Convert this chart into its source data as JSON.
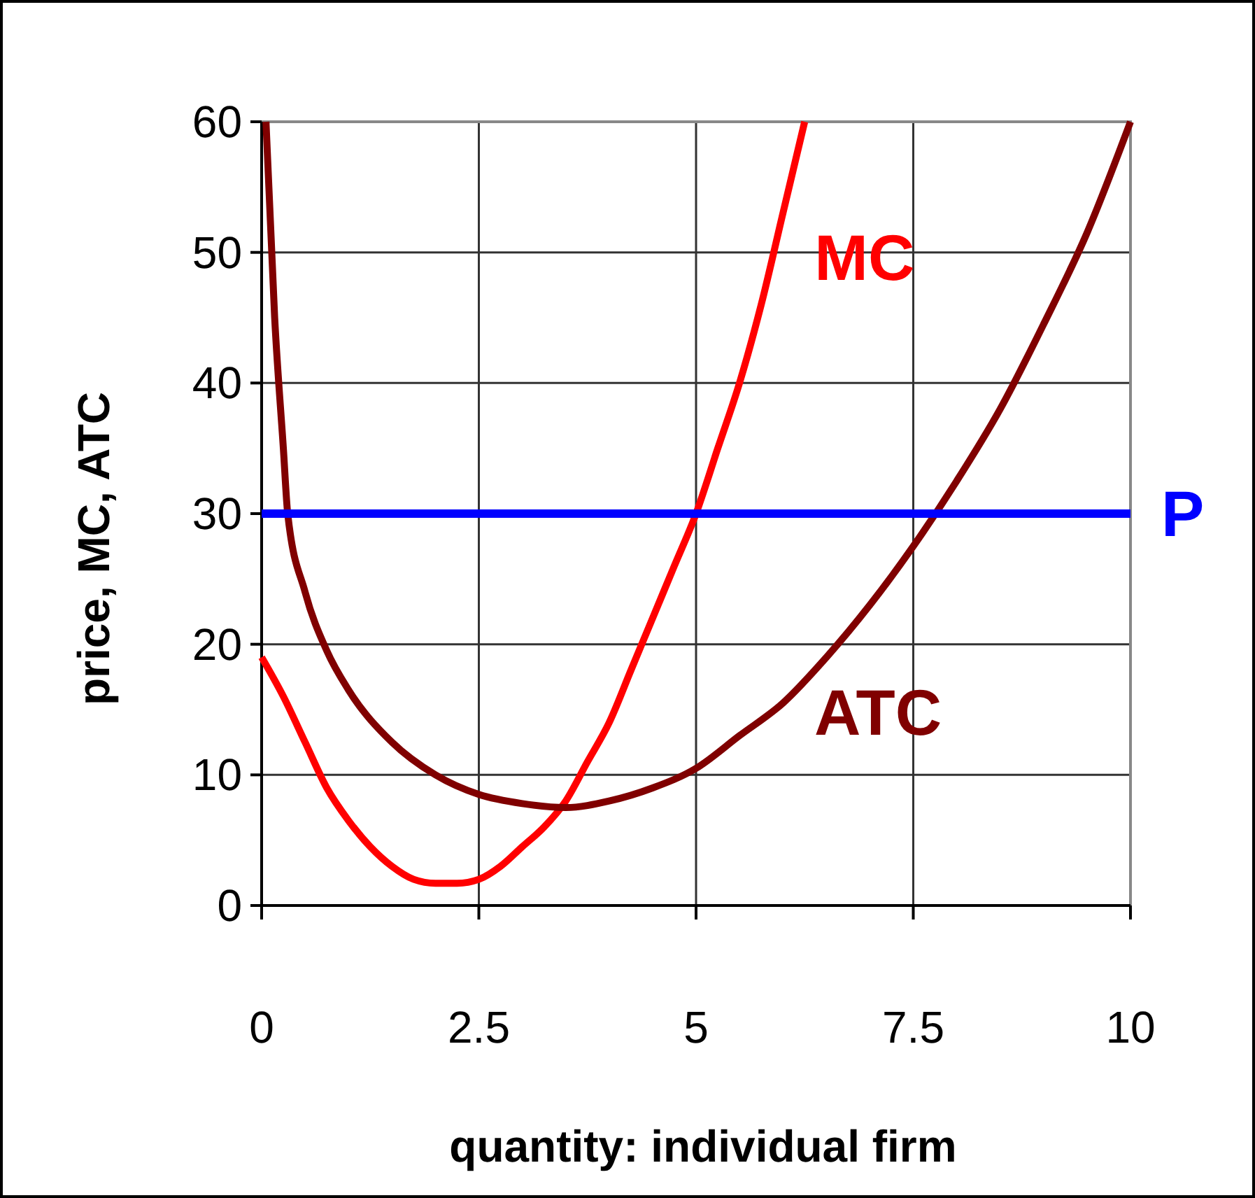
{
  "chart_data": {
    "type": "line",
    "xlabel": "quantity: individual firm",
    "ylabel": "price, MC, ATC",
    "xlim": [
      0,
      10
    ],
    "ylim": [
      0,
      60
    ],
    "xticks": [
      0,
      2.5,
      5,
      7.5,
      10
    ],
    "yticks": [
      0,
      10,
      20,
      30,
      40,
      50,
      60
    ],
    "grid": true,
    "series": [
      {
        "name": "MC",
        "color": "#ff0000",
        "x": [
          0,
          0.25,
          0.5,
          0.75,
          1,
          1.25,
          1.5,
          1.75,
          2,
          2.25,
          2.5,
          2.75,
          3,
          3.25,
          3.5,
          3.75,
          4,
          4.25,
          4.5,
          4.75,
          5,
          5.25,
          5.5,
          5.75,
          6,
          6.25
        ],
        "values": [
          19,
          16,
          12.5,
          9,
          6.5,
          4.5,
          3,
          2,
          1.7,
          1.7,
          2,
          3,
          4.5,
          6,
          8,
          11,
          14,
          18,
          22,
          26,
          30,
          35,
          40,
          46,
          53,
          60
        ]
      },
      {
        "name": "ATC",
        "color": "#800000",
        "x": [
          0.05,
          0.15,
          0.25,
          0.3,
          0.5,
          0.75,
          1,
          1.5,
          2,
          2.5,
          3,
          3.5,
          4,
          4.5,
          5,
          5.5,
          6,
          6.5,
          7,
          7.5,
          8,
          8.5,
          9,
          9.5,
          10
        ],
        "values": [
          60,
          45,
          35,
          30,
          24,
          19.5,
          16.5,
          12.5,
          10,
          8.5,
          7.8,
          7.5,
          8,
          9,
          10.5,
          13,
          15.5,
          19,
          23,
          27.5,
          32.5,
          38,
          44.5,
          51.5,
          60
        ]
      }
    ],
    "ref_lines": [
      {
        "axis": "y",
        "value": 30,
        "label": "P",
        "color": "#0000ff"
      }
    ]
  }
}
